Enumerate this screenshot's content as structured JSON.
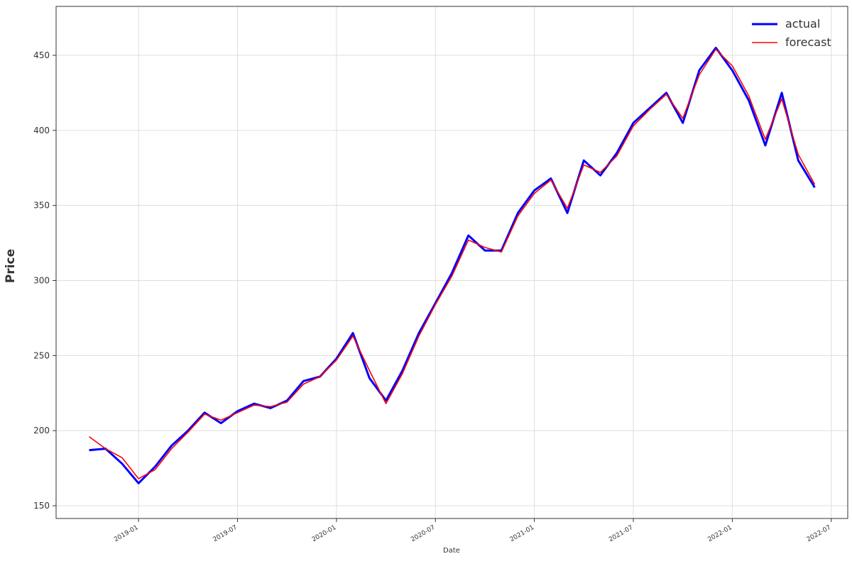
{
  "chart_data": {
    "type": "line",
    "x": [
      "2018-10",
      "2018-11",
      "2018-12",
      "2019-01",
      "2019-02",
      "2019-03",
      "2019-04",
      "2019-05",
      "2019-06",
      "2019-07",
      "2019-08",
      "2019-09",
      "2019-10",
      "2019-11",
      "2019-12",
      "2020-01",
      "2020-02",
      "2020-03",
      "2020-04",
      "2020-05",
      "2020-06",
      "2020-07",
      "2020-08",
      "2020-09",
      "2020-10",
      "2020-11",
      "2020-12",
      "2021-01",
      "2021-02",
      "2021-03",
      "2021-04",
      "2021-05",
      "2021-06",
      "2021-07",
      "2021-08",
      "2021-09",
      "2021-10",
      "2021-11",
      "2021-12",
      "2022-01",
      "2022-02",
      "2022-03",
      "2022-04",
      "2022-05",
      "2022-06"
    ],
    "series": [
      {
        "name": "actual",
        "color": "#0000ff",
        "values": [
          187,
          188,
          178,
          165,
          176,
          190,
          200,
          212,
          205,
          213,
          218,
          215,
          220,
          233,
          236,
          248,
          265,
          235,
          220,
          240,
          265,
          285,
          305,
          330,
          320,
          320,
          345,
          360,
          368,
          345,
          380,
          370,
          385,
          405,
          415,
          425,
          405,
          440,
          455,
          440,
          420,
          390,
          425,
          380,
          362
        ]
      },
      {
        "name": "forecast",
        "color": "#ff0000",
        "values": [
          196,
          188,
          182,
          168,
          174,
          188,
          199,
          211,
          207,
          212,
          217,
          216,
          219,
          231,
          236,
          247,
          263,
          240,
          218,
          238,
          263,
          284,
          303,
          327,
          322,
          319,
          343,
          358,
          367,
          348,
          377,
          372,
          383,
          403,
          414,
          424,
          408,
          437,
          454,
          443,
          423,
          394,
          421,
          384,
          364
        ]
      }
    ],
    "xlim": [
      "2018-08",
      "2022-08"
    ],
    "xticks": [
      "2019-01",
      "2019-07",
      "2020-01",
      "2020-07",
      "2021-01",
      "2021-07",
      "2022-01",
      "2022-07"
    ],
    "ylim": [
      141.5,
      482.6
    ],
    "yticks": [
      150,
      200,
      250,
      300,
      350,
      400,
      450
    ],
    "xlabel": "Date",
    "ylabel": "Price",
    "grid": true,
    "legend": "upper right"
  }
}
